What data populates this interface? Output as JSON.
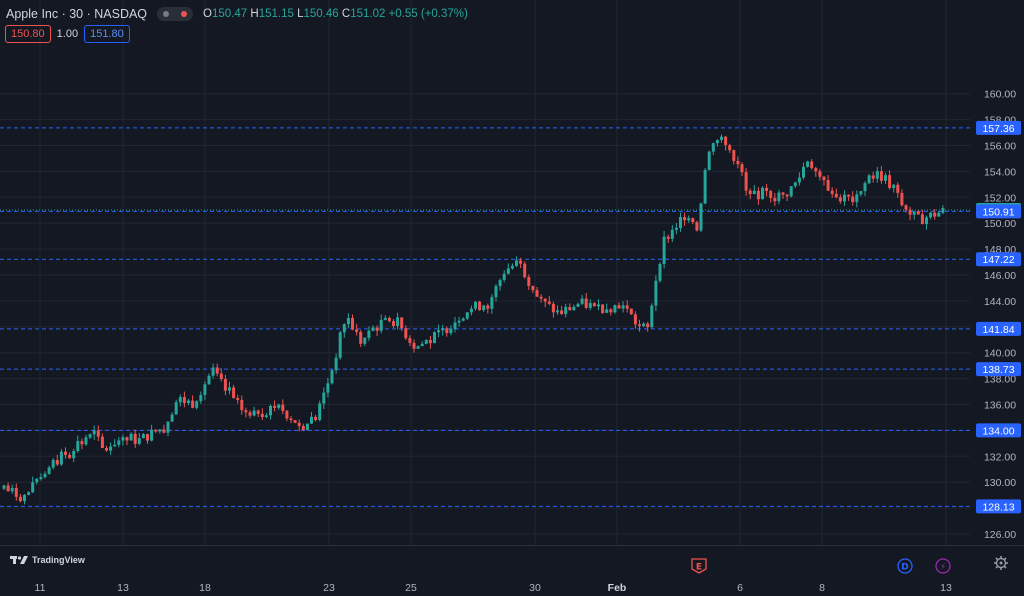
{
  "header": {
    "symbol": "Apple Inc · 30 · NASDAQ",
    "open_label": "O",
    "open": "150.47",
    "high_label": "H",
    "high": "151.15",
    "low_label": "L",
    "low": "150.46",
    "close_label": "C",
    "close": "151.02",
    "change": "+0.55 (+0.37%)",
    "sell_price": "150.80",
    "spread": "1.00",
    "buy_price": "151.80"
  },
  "logo_text": "TradingView",
  "colors": {
    "up": "#26a69a",
    "down": "#ef5350",
    "level": "#2962ff",
    "background": "#141823",
    "grid": "#222632"
  },
  "chart_data": {
    "type": "candlestick",
    "title": "",
    "symbol": "Apple Inc · 30 · NASDAQ",
    "timeframe": "30",
    "ylim": [
      125,
      161
    ],
    "y_ticks": [
      126,
      128,
      130,
      132,
      134,
      136,
      138,
      140,
      142,
      144,
      146,
      148,
      150,
      152,
      154,
      156,
      158,
      160
    ],
    "x_ticks": [
      "11",
      "13",
      "18",
      "23",
      "25",
      "30",
      "Feb",
      "6",
      "8",
      "13"
    ],
    "grid": true,
    "horizontal_levels": [
      157.36,
      151.02,
      150.91,
      147.22,
      141.84,
      138.73,
      134.0,
      128.13
    ],
    "current_price": 151.02,
    "event_markers": [
      "E",
      "D",
      "⚡"
    ],
    "price_path": [
      [
        0,
        129.5
      ],
      [
        0.02,
        128.8
      ],
      [
        0.05,
        131.5
      ],
      [
        0.07,
        132.8
      ],
      [
        0.09,
        133.9
      ],
      [
        0.1,
        132.4
      ],
      [
        0.12,
        133.6
      ],
      [
        0.135,
        133.2
      ],
      [
        0.16,
        134.2
      ],
      [
        0.175,
        136.4
      ],
      [
        0.19,
        136.1
      ],
      [
        0.21,
        138.6
      ],
      [
        0.23,
        136.3
      ],
      [
        0.25,
        135.0
      ],
      [
        0.275,
        136.0
      ],
      [
        0.3,
        134.3
      ],
      [
        0.315,
        135.1
      ],
      [
        0.33,
        138.5
      ],
      [
        0.345,
        142.9
      ],
      [
        0.36,
        140.8
      ],
      [
        0.38,
        142.3
      ],
      [
        0.395,
        142.5
      ],
      [
        0.415,
        140.4
      ],
      [
        0.44,
        141.5
      ],
      [
        0.465,
        143.2
      ],
      [
        0.49,
        144.0
      ],
      [
        0.505,
        146.4
      ],
      [
        0.52,
        147.0
      ],
      [
        0.54,
        144.0
      ],
      [
        0.56,
        143.0
      ],
      [
        0.58,
        143.8
      ],
      [
        0.6,
        143.5
      ],
      [
        0.625,
        143.6
      ],
      [
        0.64,
        142.0
      ],
      [
        0.65,
        141.8
      ],
      [
        0.655,
        144.8
      ],
      [
        0.665,
        148.6
      ],
      [
        0.68,
        150.0
      ],
      [
        0.69,
        150.8
      ],
      [
        0.7,
        149.5
      ],
      [
        0.705,
        153.5
      ],
      [
        0.715,
        156.5
      ],
      [
        0.73,
        155.8
      ],
      [
        0.74,
        154.8
      ],
      [
        0.75,
        152.0
      ],
      [
        0.77,
        152.4
      ],
      [
        0.785,
        152.0
      ],
      [
        0.8,
        153.2
      ],
      [
        0.81,
        155.0
      ],
      [
        0.825,
        153.5
      ],
      [
        0.84,
        152.0
      ],
      [
        0.86,
        151.8
      ],
      [
        0.875,
        154.0
      ],
      [
        0.89,
        153.4
      ],
      [
        0.905,
        151.5
      ],
      [
        0.92,
        150.2
      ],
      [
        0.935,
        150.6
      ],
      [
        0.95,
        151.02
      ]
    ]
  }
}
